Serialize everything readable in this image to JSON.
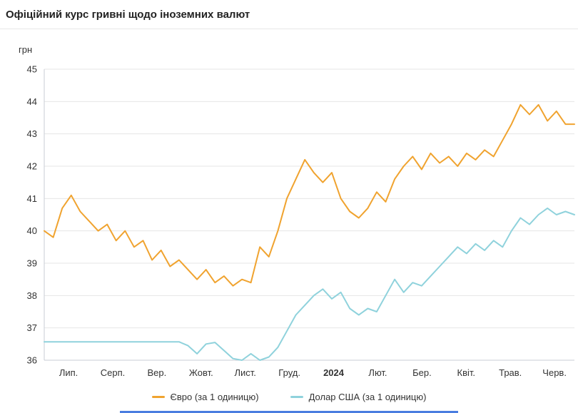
{
  "header": {
    "title": "Офіційний курс гривні щодо іноземних валют"
  },
  "chart_data": {
    "type": "line",
    "title": "Офіційний курс гривні щодо іноземних валют",
    "ylabel": "грн",
    "xlabel": "",
    "ylim": [
      36,
      45
    ],
    "yticks": [
      36,
      37,
      38,
      39,
      40,
      41,
      42,
      43,
      44,
      45
    ],
    "grid": true,
    "legend_position": "bottom",
    "x_labels": [
      "Лип.",
      "Серп.",
      "Вер.",
      "Жовт.",
      "Лист.",
      "Груд.",
      "2024",
      "Лют.",
      "Бер.",
      "Квіт.",
      "Трав.",
      "Черв."
    ],
    "bold_x_label": "2024",
    "series": [
      {
        "name": "Євро (за 1 одиницю)",
        "color": "#F0A32F",
        "values": [
          40.0,
          39.8,
          40.7,
          41.1,
          40.6,
          40.3,
          40.0,
          40.2,
          39.7,
          40.0,
          39.5,
          39.7,
          39.1,
          39.4,
          38.9,
          39.1,
          38.8,
          38.5,
          38.8,
          38.4,
          38.6,
          38.3,
          38.5,
          38.4,
          39.5,
          39.2,
          40.0,
          41.0,
          41.6,
          42.2,
          41.8,
          41.5,
          41.8,
          41.0,
          40.6,
          40.4,
          40.7,
          41.2,
          40.9,
          41.6,
          42.0,
          42.3,
          41.9,
          42.4,
          42.1,
          42.3,
          42.0,
          42.4,
          42.2,
          42.5,
          42.3,
          42.8,
          43.3,
          43.9,
          43.6,
          43.9,
          43.4,
          43.7,
          43.3,
          43.3
        ]
      },
      {
        "name": "Долар США (за 1 одиницю)",
        "color": "#8FD2DC",
        "values": [
          36.57,
          36.57,
          36.57,
          36.57,
          36.57,
          36.57,
          36.57,
          36.57,
          36.57,
          36.57,
          36.57,
          36.57,
          36.57,
          36.57,
          36.57,
          36.57,
          36.45,
          36.2,
          36.5,
          36.55,
          36.3,
          36.05,
          36.0,
          36.2,
          36.0,
          36.1,
          36.4,
          36.9,
          37.4,
          37.7,
          38.0,
          38.2,
          37.9,
          38.1,
          37.6,
          37.4,
          37.6,
          37.5,
          38.0,
          38.5,
          38.1,
          38.4,
          38.3,
          38.6,
          38.9,
          39.2,
          39.5,
          39.3,
          39.6,
          39.4,
          39.7,
          39.5,
          40.0,
          40.4,
          40.2,
          40.5,
          40.7,
          40.5,
          40.6,
          40.5
        ]
      }
    ]
  },
  "colors": {
    "grid": "#E6E6E6",
    "axis": "#C9CED6",
    "tick_text": "#333333",
    "accent_bar": "#4A7DE0"
  }
}
